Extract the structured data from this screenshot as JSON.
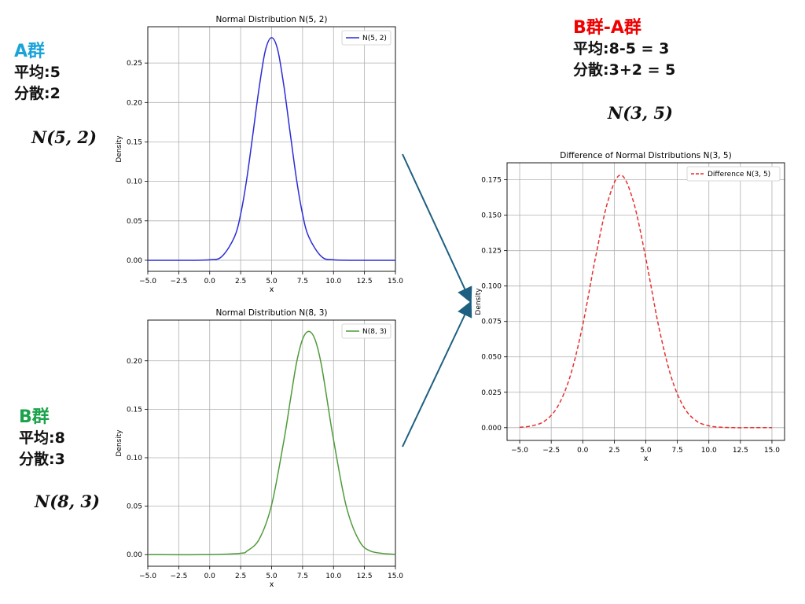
{
  "annotations": {
    "groupA": {
      "title": "A群",
      "mean": "平均:5",
      "variance": "分散:2",
      "notation": "N(5, 2)",
      "color": "#1aa3d9"
    },
    "groupB": {
      "title": "B群",
      "mean": "平均:8",
      "variance": "分散:3",
      "notation": "N(8, 3)",
      "color": "#1aa34a"
    },
    "diff": {
      "title": "B群-A群",
      "mean": "平均:8-5 = 3",
      "variance": "分散:3+2 = 5",
      "notation": "N(3, 5)",
      "color": "#f00000"
    }
  },
  "arrow_color": "#1d5f80",
  "chart_data": [
    {
      "type": "line",
      "title": "Normal Distribution N(5, 2)",
      "xlabel": "x",
      "ylabel": "Density",
      "xlim": [
        -5,
        15
      ],
      "ylim": [
        -0.014,
        0.296
      ],
      "xticks": [
        -5,
        -2.5,
        0,
        2.5,
        5,
        7.5,
        10,
        12.5,
        15
      ],
      "xtick_labels": [
        "−5.0",
        "−2.5",
        "0.0",
        "2.5",
        "5.0",
        "7.5",
        "10.0",
        "12.5",
        "15.0"
      ],
      "yticks": [
        0,
        0.05,
        0.1,
        0.15,
        0.2,
        0.25
      ],
      "ytick_labels": [
        "0.00",
        "0.05",
        "0.10",
        "0.15",
        "0.20",
        "0.25"
      ],
      "grid": true,
      "legend_position": "top-right",
      "series": [
        {
          "name": "N(5, 2)",
          "color": "#2b2bd6",
          "dash": "solid",
          "mean": 5,
          "variance": 2,
          "x": [
            -5,
            -2.5,
            0,
            1,
            2,
            2.5,
            3,
            3.5,
            4,
            4.5,
            5,
            5.5,
            6,
            6.5,
            7,
            7.5,
            8,
            9,
            10,
            12.5,
            15
          ],
          "y": [
            0.0,
            0.0,
            0.0006,
            0.0051,
            0.0297,
            0.0584,
            0.1038,
            0.1614,
            0.2197,
            0.2662,
            0.2821,
            0.2662,
            0.2197,
            0.1614,
            0.1038,
            0.0584,
            0.0297,
            0.0051,
            0.0006,
            0.0,
            0.0
          ]
        }
      ]
    },
    {
      "type": "line",
      "title": "Normal Distribution N(8, 3)",
      "xlabel": "x",
      "ylabel": "Density",
      "xlim": [
        -5,
        15
      ],
      "ylim": [
        -0.012,
        0.242
      ],
      "xticks": [
        -5,
        -2.5,
        0,
        2.5,
        5,
        7.5,
        10,
        12.5,
        15
      ],
      "xtick_labels": [
        "−5.0",
        "−2.5",
        "0.0",
        "2.5",
        "5.0",
        "7.5",
        "10.0",
        "12.5",
        "15.0"
      ],
      "yticks": [
        0,
        0.05,
        0.1,
        0.15,
        0.2
      ],
      "ytick_labels": [
        "0.00",
        "0.05",
        "0.10",
        "0.15",
        "0.20"
      ],
      "grid": true,
      "legend_position": "top-right",
      "series": [
        {
          "name": "N(8, 3)",
          "color": "#4f9a3a",
          "dash": "solid",
          "mean": 8,
          "variance": 3,
          "x": [
            -5,
            0,
            2.5,
            3,
            4,
            5,
            6,
            6.5,
            7,
            7.5,
            8,
            8.5,
            9,
            9.5,
            10,
            11,
            12,
            13,
            15
          ],
          "y": [
            0.0,
            0.0,
            0.0014,
            0.0036,
            0.016,
            0.0513,
            0.1185,
            0.1581,
            0.1971,
            0.2222,
            0.2303,
            0.2222,
            0.1971,
            0.1581,
            0.1185,
            0.0513,
            0.016,
            0.0036,
            0.0001
          ]
        }
      ]
    },
    {
      "type": "line",
      "title": "Difference of Normal Distributions N(3, 5)",
      "xlabel": "x",
      "ylabel": "Density",
      "xlim": [
        -6,
        16
      ],
      "ylim": [
        -0.009,
        0.187
      ],
      "xticks": [
        -5,
        -2.5,
        0,
        2.5,
        5,
        7.5,
        10,
        12.5,
        15
      ],
      "xtick_labels": [
        "−5.0",
        "−2.5",
        "0.0",
        "2.5",
        "5.0",
        "7.5",
        "10.0",
        "12.5",
        "15.0"
      ],
      "yticks": [
        0,
        0.025,
        0.05,
        0.075,
        0.1,
        0.125,
        0.15,
        0.175
      ],
      "ytick_labels": [
        "0.000",
        "0.025",
        "0.050",
        "0.075",
        "0.100",
        "0.125",
        "0.150",
        "0.175"
      ],
      "grid": true,
      "legend_position": "top-right",
      "series": [
        {
          "name": "Difference N(3, 5)",
          "color": "#e83030",
          "dash": "dashed",
          "mean": 3,
          "variance": 5,
          "x": [
            -5,
            -4,
            -3,
            -2,
            -1,
            0,
            1,
            2,
            3,
            4,
            5,
            6,
            7,
            8,
            9,
            10,
            11,
            12,
            13,
            15
          ],
          "y": [
            0.0003,
            0.0013,
            0.0048,
            0.0147,
            0.0362,
            0.0725,
            0.1196,
            0.1601,
            0.1784,
            0.1601,
            0.1196,
            0.0725,
            0.0362,
            0.0147,
            0.0048,
            0.0013,
            0.0003,
            0.0,
            0.0,
            0.0
          ]
        }
      ]
    }
  ]
}
